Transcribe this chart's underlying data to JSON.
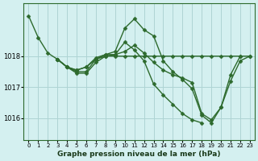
{
  "xlabel": "Graphe pression niveau de la mer (hPa)",
  "xlim": [
    -0.5,
    23.5
  ],
  "ylim": [
    1015.3,
    1019.7
  ],
  "yticks": [
    1016,
    1017,
    1018
  ],
  "xticks": [
    0,
    1,
    2,
    3,
    4,
    5,
    6,
    7,
    8,
    9,
    10,
    11,
    12,
    13,
    14,
    15,
    16,
    17,
    18,
    19,
    20,
    21,
    22,
    23
  ],
  "bg_color": "#d4f0f0",
  "grid_color": "#aed4d4",
  "line_color": "#2d6a2d",
  "line_width": 1.0,
  "marker": "D",
  "marker_size": 2.5,
  "series": [
    {
      "x": [
        0,
        1,
        2,
        3,
        4,
        5,
        6,
        7,
        8,
        9,
        10,
        11,
        12,
        13,
        14,
        15,
        16,
        17,
        18,
        19,
        20,
        21,
        22
      ],
      "y": [
        1019.3,
        1018.6,
        1018.1,
        1017.9,
        1017.65,
        1017.55,
        1017.65,
        1017.95,
        1018.05,
        1018.05,
        1018.15,
        1018.35,
        1018.1,
        1017.8,
        1017.55,
        1017.4,
        1017.3,
        1017.15,
        1016.15,
        1015.95,
        1016.35,
        1017.4,
        1018.0
      ]
    },
    {
      "x": [
        3,
        4,
        5,
        6,
        7,
        8,
        9,
        10,
        11,
        12,
        13,
        14,
        15,
        16,
        17,
        18,
        19,
        20,
        21,
        22,
        23
      ],
      "y": [
        1017.9,
        1017.65,
        1017.55,
        1017.65,
        1017.9,
        1018.05,
        1018.15,
        1018.9,
        1019.2,
        1018.85,
        1018.65,
        1017.85,
        1017.5,
        1017.25,
        1016.95,
        1016.1,
        1015.85,
        1016.35,
        1017.2,
        1017.85,
        1018.0
      ]
    },
    {
      "x": [
        3,
        4,
        5,
        6,
        7,
        8,
        9,
        10,
        11,
        12,
        13,
        14,
        15,
        16,
        17,
        18
      ],
      "y": [
        1017.9,
        1017.65,
        1017.45,
        1017.45,
        1017.8,
        1018.0,
        1018.05,
        1018.45,
        1018.2,
        1017.85,
        1017.1,
        1016.75,
        1016.45,
        1016.15,
        1015.95,
        1015.85
      ]
    },
    {
      "x": [
        3,
        4,
        5,
        6,
        7,
        8,
        9,
        10,
        11,
        12,
        13,
        14,
        15,
        16,
        17,
        18,
        19,
        20,
        21,
        22,
        23
      ],
      "y": [
        1017.9,
        1017.65,
        1017.5,
        1017.5,
        1017.9,
        1018.0,
        1018.0,
        1018.0,
        1018.0,
        1018.0,
        1018.0,
        1018.0,
        1018.0,
        1018.0,
        1018.0,
        1018.0,
        1018.0,
        1018.0,
        1018.0,
        1018.0,
        1018.0
      ]
    }
  ]
}
